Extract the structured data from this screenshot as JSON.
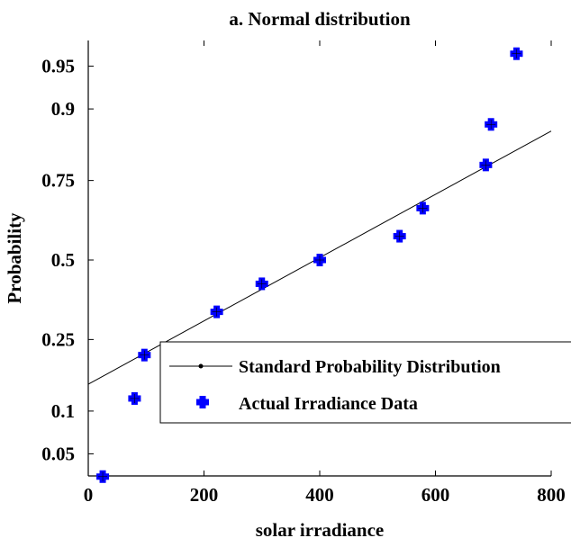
{
  "chart_data": {
    "type": "scatter",
    "title": "a. Normal distribution",
    "xlabel": "solar irradiance",
    "ylabel": "Probability",
    "xlim": [
      0,
      800
    ],
    "x_ticks": [
      0,
      200,
      400,
      600,
      800
    ],
    "x_tick_labels": [
      "0",
      "200",
      "400",
      "600",
      "800"
    ],
    "y_scale": "normal-probability",
    "y_ticks": [
      0.05,
      0.1,
      0.25,
      0.5,
      0.75,
      0.9,
      0.95
    ],
    "y_tick_labels": [
      "0.05",
      "0.1",
      "0.25",
      "0.5",
      "0.75",
      "0.9",
      "0.95"
    ],
    "legend": {
      "placement": "lower-right",
      "entries": [
        "Standard Probability Distribution",
        "Actual Irradiance Data"
      ]
    },
    "series": [
      {
        "name": "Standard Probability Distribution",
        "kind": "line",
        "color": "#000000",
        "x": [
          0,
          800
        ],
        "y": [
          0.146,
          0.863
        ]
      },
      {
        "name": "Actual Irradiance Data",
        "kind": "scatter",
        "color": "#0000ff",
        "x": [
          25,
          80,
          97,
          222,
          300,
          400,
          538,
          578,
          687,
          696,
          740
        ],
        "y": [
          0.033,
          0.12,
          0.21,
          0.33,
          0.42,
          0.5,
          0.58,
          0.67,
          0.79,
          0.875,
          0.96
        ]
      }
    ]
  }
}
